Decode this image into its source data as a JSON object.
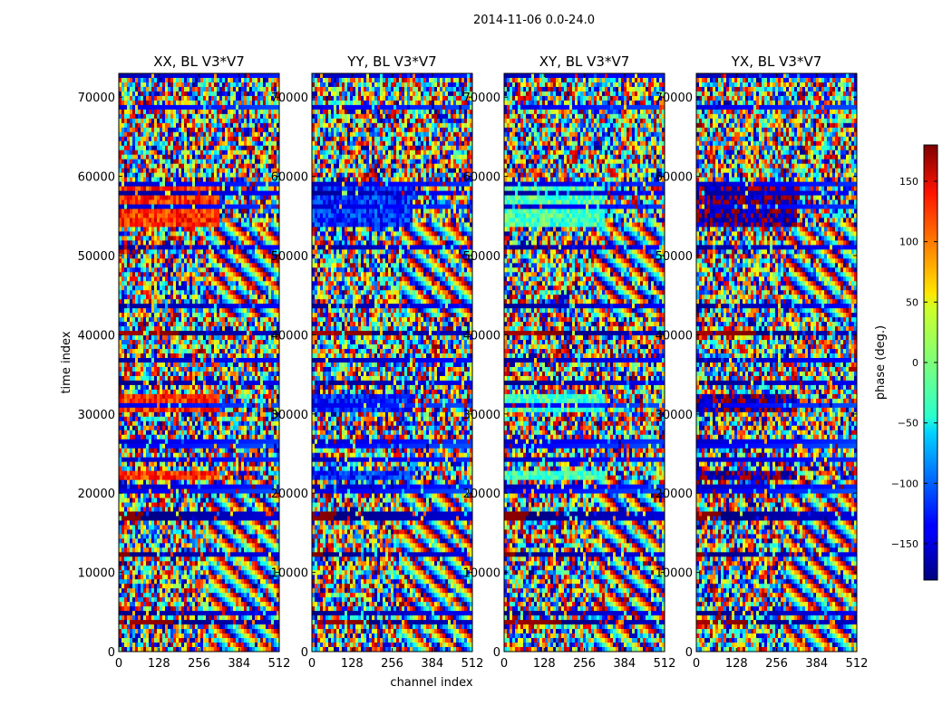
{
  "chart_data": {
    "type": "heatmap",
    "suptitle": "2014-11-06 0.0-24.0",
    "xlabel": "channel index",
    "ylabel": "time index",
    "xlim": [
      0,
      512
    ],
    "ylim": [
      0,
      73000
    ],
    "xticks": [
      0,
      128,
      256,
      384,
      512
    ],
    "yticks": [
      0,
      10000,
      20000,
      30000,
      40000,
      50000,
      60000,
      70000
    ],
    "colormap": "jet",
    "panels": [
      {
        "title": "XX, BL V3*V7",
        "bias_phase": 120
      },
      {
        "title": "YY, BL V3*V7",
        "bias_phase": -120
      },
      {
        "title": "XY, BL V3*V7",
        "bias_phase": -20
      },
      {
        "title": "YX, BL V3*V7",
        "bias_phase": -170
      }
    ],
    "colorbar": {
      "label": "phase (deg.)",
      "range": [
        -180,
        180
      ],
      "ticks": [
        -150,
        -100,
        -50,
        0,
        50,
        100,
        150
      ],
      "tick_labels": [
        "−150",
        "−100",
        "−50",
        "0",
        "50",
        "100",
        "150"
      ]
    }
  }
}
